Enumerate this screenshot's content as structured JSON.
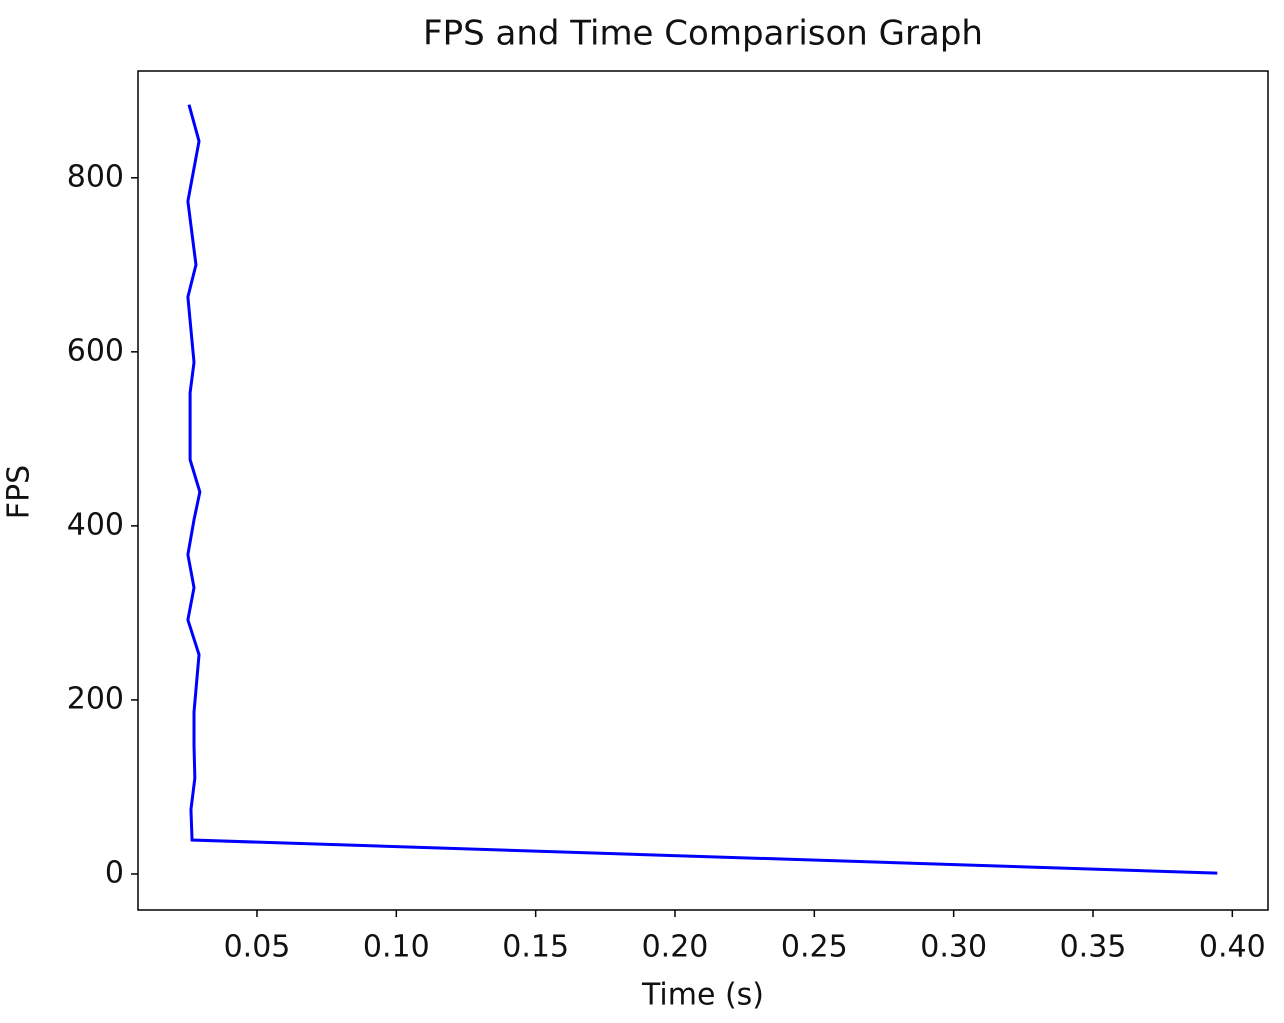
{
  "chart_data": {
    "type": "line",
    "title": "FPS and Time Comparison Graph",
    "x_label": "Time (s)",
    "y_label": "FPS",
    "series": [
      {
        "color": "#0000ff",
        "x": [
          0.0256,
          0.0292,
          0.0252,
          0.0281,
          0.0252,
          0.0274,
          0.026,
          0.026,
          0.0295,
          0.0274,
          0.0252,
          0.0274,
          0.0252,
          0.0292,
          0.0274,
          0.0274,
          0.0277,
          0.0263,
          0.0267,
          0.3946
        ],
        "values": [
          884,
          842,
          773,
          700,
          663,
          588,
          553,
          476,
          439,
          407,
          367,
          329,
          292,
          252,
          186,
          148,
          110,
          74,
          39,
          1
        ]
      }
    ],
    "xlim": [
      0.0073,
      0.4128
    ],
    "ylim": [
      -41.4,
      922.7
    ],
    "xticks": [
      0.05,
      {
        "value": 0.1,
        "label": "0.10"
      },
      0.15,
      {
        "value": 0.2,
        "label": "0.20"
      },
      0.25,
      {
        "value": 0.3,
        "label": "0.30"
      },
      0.35,
      {
        "value": 0.4,
        "label": "0.40"
      }
    ],
    "yticks": [
      0,
      200,
      400,
      600,
      800
    ],
    "grid": false
  }
}
